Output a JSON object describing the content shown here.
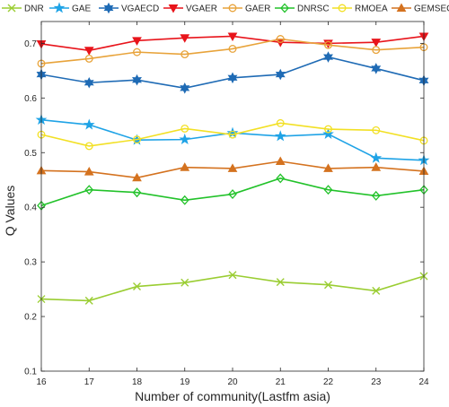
{
  "chart_data": {
    "type": "line",
    "xlabel": "Number of community(Lastfm asia)",
    "ylabel": "Q Values",
    "x": [
      16,
      17,
      18,
      19,
      20,
      21,
      22,
      23,
      24
    ],
    "xlim": [
      16,
      24
    ],
    "ylim": [
      0.1,
      0.74
    ],
    "yticks": [
      0.1,
      0.2,
      0.3,
      0.4,
      0.5,
      0.6,
      0.7
    ],
    "grid": false,
    "legend_position": "top",
    "series": [
      {
        "name": "DNR",
        "color": "#9acd32",
        "marker": "x",
        "values": [
          0.232,
          0.229,
          0.255,
          0.262,
          0.276,
          0.263,
          0.258,
          0.247,
          0.274
        ]
      },
      {
        "name": "GAE",
        "color": "#1fa3e6",
        "marker": "star",
        "values": [
          0.56,
          0.551,
          0.523,
          0.524,
          0.536,
          0.53,
          0.534,
          0.49,
          0.486
        ]
      },
      {
        "name": "VGAECD",
        "color": "#1f6bb5",
        "marker": "hexagram",
        "values": [
          0.643,
          0.628,
          0.633,
          0.618,
          0.637,
          0.643,
          0.675,
          0.654,
          0.632
        ]
      },
      {
        "name": "VGAER",
        "color": "#e8141b",
        "marker": "triangle-down",
        "values": [
          0.699,
          0.687,
          0.705,
          0.71,
          0.713,
          0.702,
          0.7,
          0.702,
          0.713
        ]
      },
      {
        "name": "GAER",
        "color": "#e8a33a",
        "marker": "circle",
        "values": [
          0.663,
          0.672,
          0.684,
          0.68,
          0.69,
          0.708,
          0.697,
          0.688,
          0.693
        ]
      },
      {
        "name": "DNRSC",
        "color": "#22c22a",
        "marker": "diamond",
        "values": [
          0.403,
          0.432,
          0.427,
          0.413,
          0.424,
          0.453,
          0.432,
          0.421,
          0.432
        ]
      },
      {
        "name": "RMOEA",
        "color": "#f2e024",
        "marker": "circle",
        "values": [
          0.533,
          0.512,
          0.524,
          0.544,
          0.533,
          0.554,
          0.543,
          0.541,
          0.522
        ]
      },
      {
        "name": "GEMSEC",
        "color": "#d4721f",
        "marker": "triangle-up",
        "values": [
          0.467,
          0.465,
          0.454,
          0.473,
          0.471,
          0.484,
          0.471,
          0.473,
          0.466
        ]
      }
    ]
  }
}
